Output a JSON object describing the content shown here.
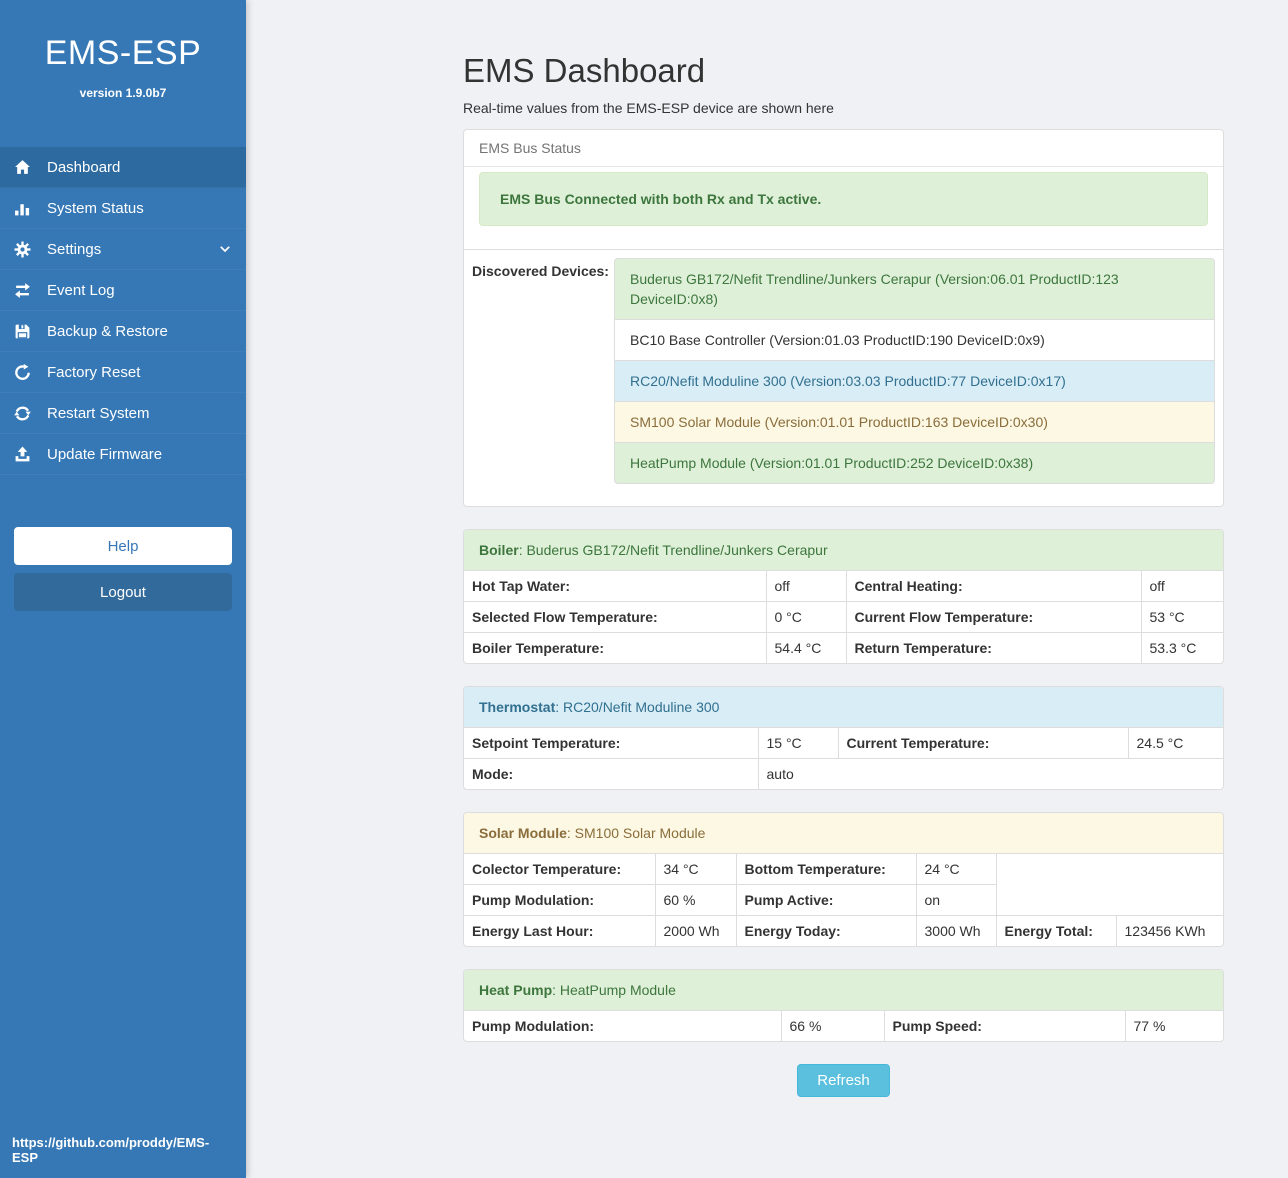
{
  "sidebar": {
    "brand": "EMS-ESP",
    "version": "version 1.9.0b7",
    "nav": [
      {
        "label": "Dashboard",
        "icon": "home-icon",
        "active": true
      },
      {
        "label": "System Status",
        "icon": "system-status-icon"
      },
      {
        "label": "Settings",
        "icon": "gear-icon",
        "has_submenu": true
      },
      {
        "label": "Event Log",
        "icon": "exchange-icon"
      },
      {
        "label": "Backup & Restore",
        "icon": "save-icon"
      },
      {
        "label": "Factory Reset",
        "icon": "factory-reset-icon"
      },
      {
        "label": "Restart System",
        "icon": "restart-icon"
      },
      {
        "label": "Update Firmware",
        "icon": "upload-icon"
      }
    ],
    "help_label": "Help",
    "logout_label": "Logout",
    "footer_link": "https://github.com/proddy/EMS-ESP"
  },
  "header": {
    "title": "EMS Dashboard",
    "subtitle": "Real-time values from the EMS-ESP device are shown here"
  },
  "bus_panel": {
    "title": "EMS Bus Status",
    "alert": "EMS Bus Connected with both Rx and Tx active.",
    "devices_label": "Discovered Devices:",
    "devices": [
      {
        "text": "Buderus GB172/Nefit Trendline/Junkers Cerapur (Version:06.01 ProductID:123 DeviceID:0x8)",
        "style": "success"
      },
      {
        "text": "BC10 Base Controller (Version:01.03 ProductID:190 DeviceID:0x9)",
        "style": "default"
      },
      {
        "text": "RC20/Nefit Moduline 300 (Version:03.03 ProductID:77 DeviceID:0x17)",
        "style": "info"
      },
      {
        "text": "SM100 Solar Module (Version:01.01 ProductID:163 DeviceID:0x30)",
        "style": "warning"
      },
      {
        "text": "HeatPump Module (Version:01.01 ProductID:252 DeviceID:0x38)",
        "style": "success"
      }
    ]
  },
  "device_panels": [
    {
      "key": "boiler",
      "style": "success",
      "title_bold": "Boiler",
      "title_rest": ": Buderus GB172/Nefit Trendline/Junkers Cerapur",
      "rows": [
        [
          {
            "label": "Hot Tap Water:"
          },
          {
            "value": "off"
          },
          {
            "label": "Central Heating:"
          },
          {
            "value": "off"
          }
        ],
        [
          {
            "label": "Selected Flow Temperature:"
          },
          {
            "value": "0 °C"
          },
          {
            "label": "Current Flow Temperature:"
          },
          {
            "value": "53 °C"
          }
        ],
        [
          {
            "label": "Boiler Temperature:"
          },
          {
            "value": "54.4 °C"
          },
          {
            "label": "Return Temperature:"
          },
          {
            "value": "53.3 °C"
          }
        ]
      ]
    },
    {
      "key": "thermostat",
      "style": "info",
      "title_bold": "Thermostat",
      "title_rest": ": RC20/Nefit Moduline 300",
      "rows": [
        [
          {
            "label": "Setpoint Temperature:"
          },
          {
            "value": "15 °C"
          },
          {
            "label": "Current Temperature:"
          },
          {
            "value": "24.5 °C"
          }
        ],
        [
          {
            "label": "Mode:"
          },
          {
            "value": "auto",
            "span": 3
          }
        ]
      ]
    },
    {
      "key": "solar",
      "style": "warning",
      "title_bold": "Solar Module",
      "title_rest": ": SM100 Solar Module",
      "rows": [
        [
          {
            "label": "Colector Temperature:"
          },
          {
            "value": "34 °C"
          },
          {
            "label": "Bottom Temperature:"
          },
          {
            "value": "24 °C"
          },
          {
            "filler": true,
            "span": 2
          }
        ],
        [
          {
            "label": "Pump Modulation:"
          },
          {
            "value": "60 %"
          },
          {
            "label": "Pump Active:"
          },
          {
            "value": "on"
          },
          {
            "filler": true,
            "span": 2
          }
        ],
        [
          {
            "label": "Energy Last Hour:"
          },
          {
            "value": "2000 Wh"
          },
          {
            "label": "Energy Today:"
          },
          {
            "value": "3000 Wh"
          },
          {
            "label": "Energy Total:"
          },
          {
            "value": "123456 KWh"
          }
        ]
      ]
    },
    {
      "key": "heatpump",
      "style": "success",
      "title_bold": "Heat Pump",
      "title_rest": ": HeatPump Module",
      "rows": [
        [
          {
            "label": "Pump Modulation:"
          },
          {
            "value": "66 %"
          },
          {
            "label": "Pump Speed:"
          },
          {
            "value": "77 %"
          }
        ]
      ]
    }
  ],
  "refresh_label": "Refresh",
  "colors": {
    "sidebar": "#3578b5",
    "sidebar_active": "#2d6a9f",
    "logout_button": "#336a9c",
    "refresh_button": "#5bc0de",
    "success_bg": "#dff0d8",
    "success_text": "#3c763d",
    "info_bg": "#d9edf7",
    "info_text": "#31708f",
    "warning_bg": "#fcf8e3",
    "warning_text": "#8a6d3b"
  }
}
